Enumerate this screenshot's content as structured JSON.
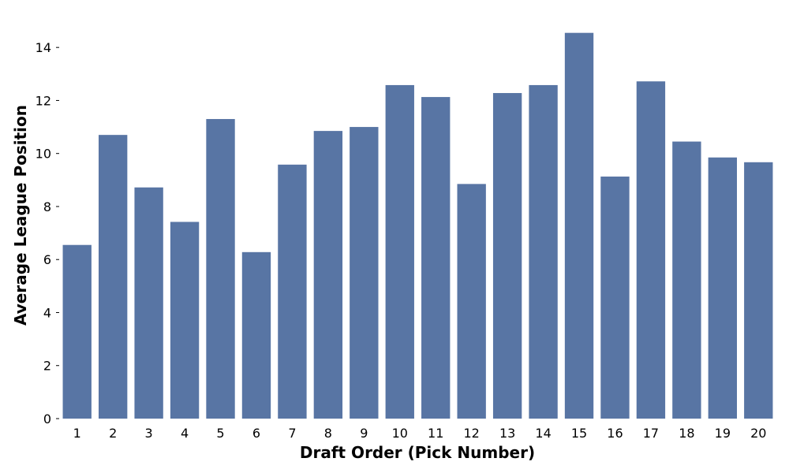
{
  "chart_data": {
    "type": "bar",
    "title": "",
    "xlabel": "Draft Order (Pick Number)",
    "ylabel": "Average League Position",
    "categories": [
      "1",
      "2",
      "3",
      "4",
      "5",
      "6",
      "7",
      "8",
      "9",
      "10",
      "11",
      "12",
      "13",
      "14",
      "15",
      "16",
      "17",
      "18",
      "19",
      "20"
    ],
    "values": [
      6.55,
      10.7,
      8.72,
      7.42,
      11.3,
      6.28,
      9.58,
      10.85,
      11.0,
      12.58,
      12.13,
      8.85,
      12.28,
      12.58,
      14.55,
      9.13,
      12.72,
      10.45,
      9.85,
      9.67
    ],
    "ylim": [
      0,
      14.6
    ],
    "yticks": [
      0,
      2,
      4,
      6,
      8,
      10,
      12,
      14
    ],
    "grid": false,
    "bar_color": "#5875a4"
  }
}
